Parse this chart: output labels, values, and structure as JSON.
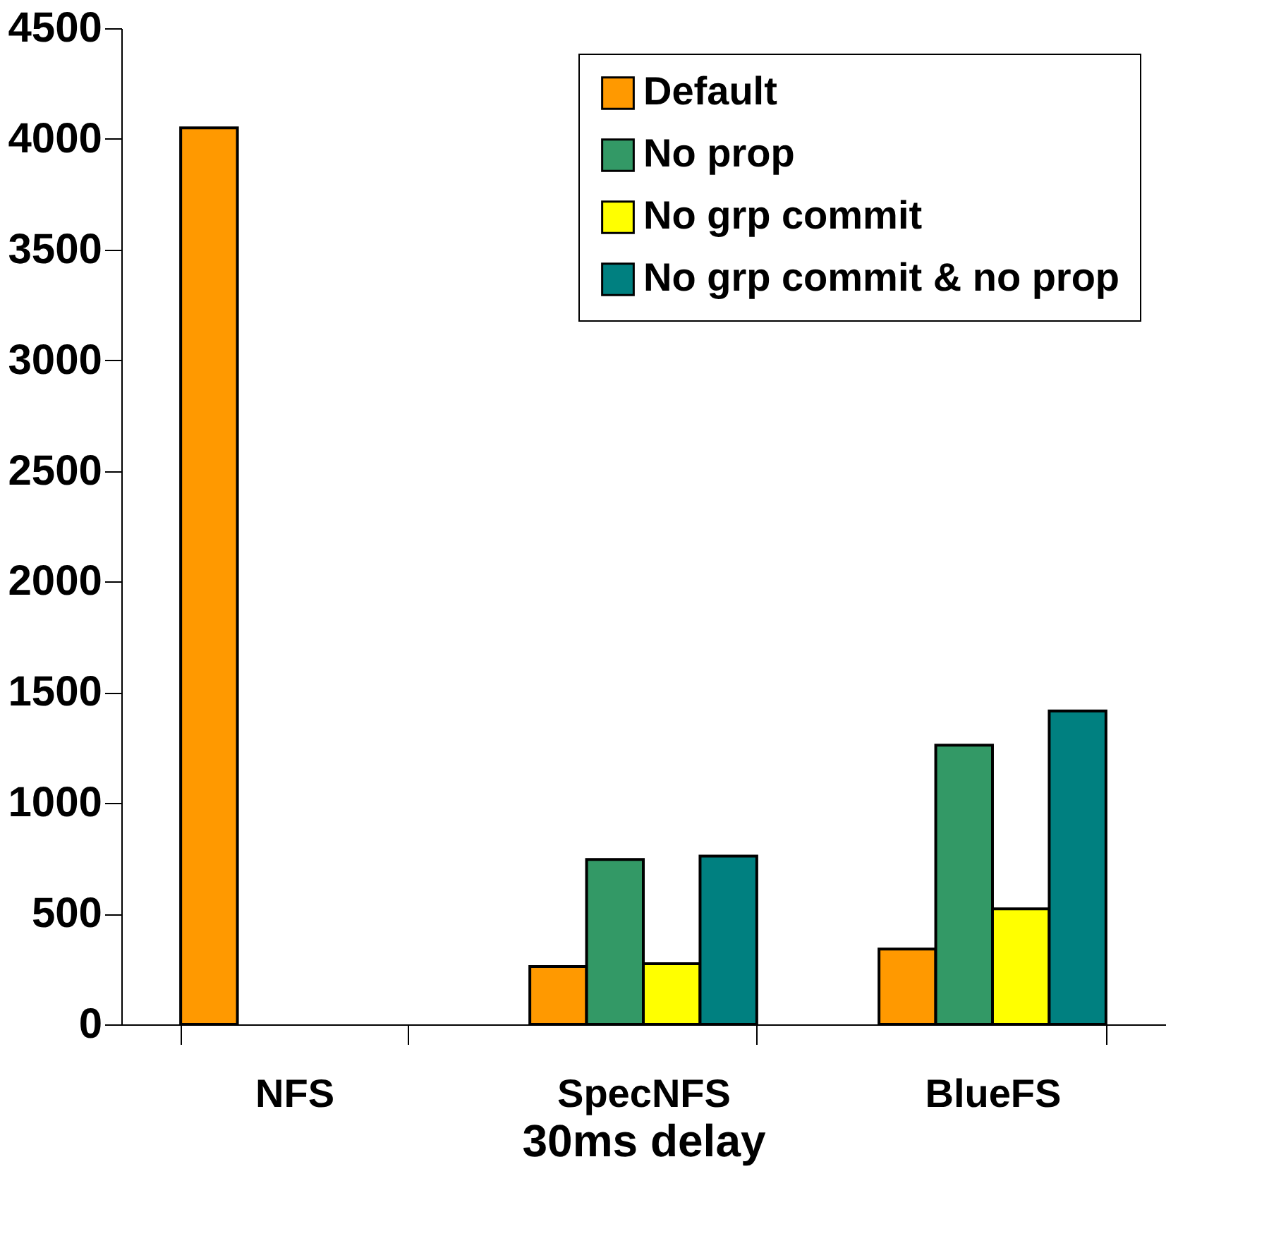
{
  "chart_data": {
    "type": "bar",
    "xlabel": "30ms delay",
    "categories": [
      "NFS",
      "SpecNFS",
      "BlueFS"
    ],
    "series": [
      {
        "name": "Default",
        "color": "#ff9900",
        "values": [
          4050,
          261,
          340
        ]
      },
      {
        "name": "No prop",
        "color": "#339966",
        "values": [
          null,
          745,
          1261
        ]
      },
      {
        "name": "No grp commit",
        "color": "#ffff00",
        "values": [
          null,
          274,
          522
        ]
      },
      {
        "name": "No grp commit & no prop",
        "color": "#008080",
        "values": [
          null,
          760,
          1416
        ]
      }
    ],
    "ylim": [
      0,
      4500
    ],
    "yticks": [
      0,
      500,
      1000,
      1500,
      2000,
      2500,
      3000,
      3500,
      4000,
      4500
    ],
    "grid": false,
    "legend": "top right"
  }
}
